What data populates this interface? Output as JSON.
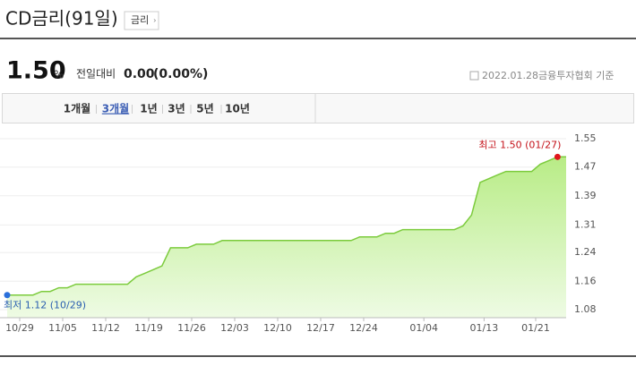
{
  "header": {
    "title": "CD금리(91일)",
    "button": "금리"
  },
  "summary": {
    "value": "1.50",
    "unit": "%",
    "change_label": "전일대비",
    "change": "0.00",
    "change_pct": "(0.00%)",
    "date": "2022.01.28",
    "source": "금융투자협회 기준"
  },
  "tabs": [
    "1개월",
    "3개월",
    "1년",
    "3년",
    "5년",
    "10년"
  ],
  "active_tab": 1,
  "chart_data": {
    "type": "area",
    "categories": [
      "10/29",
      null,
      null,
      null,
      null,
      "11/05",
      null,
      null,
      null,
      null,
      "11/12",
      null,
      null,
      null,
      null,
      "11/19",
      null,
      null,
      null,
      null,
      "11/26",
      null,
      null,
      null,
      null,
      "12/03",
      null,
      null,
      null,
      null,
      "12/10",
      null,
      null,
      null,
      null,
      "12/17",
      null,
      null,
      null,
      null,
      "12/24",
      null,
      null,
      null,
      null,
      null,
      null,
      "01/04",
      null,
      null,
      null,
      null,
      null,
      null,
      "01/13",
      null,
      null,
      null,
      null,
      null,
      "01/21",
      null,
      null,
      null,
      null,
      null
    ],
    "values": [
      1.12,
      1.12,
      1.12,
      1.12,
      1.13,
      1.13,
      1.14,
      1.14,
      1.15,
      1.15,
      1.15,
      1.15,
      1.15,
      1.15,
      1.15,
      1.17,
      1.18,
      1.19,
      1.2,
      1.25,
      1.25,
      1.25,
      1.26,
      1.26,
      1.26,
      1.27,
      1.27,
      1.27,
      1.27,
      1.27,
      1.27,
      1.27,
      1.27,
      1.27,
      1.27,
      1.27,
      1.27,
      1.27,
      1.27,
      1.27,
      1.27,
      1.28,
      1.28,
      1.28,
      1.29,
      1.29,
      1.3,
      1.3,
      1.3,
      1.3,
      1.3,
      1.3,
      1.3,
      1.31,
      1.34,
      1.43,
      1.44,
      1.45,
      1.46,
      1.46,
      1.46,
      1.46,
      1.48,
      1.49,
      1.5,
      1.5
    ],
    "color": "#7ccb3d",
    "ylim": [
      1.08,
      1.55
    ],
    "yticks": [
      1.08,
      {
        "value": 1.158,
        "label": "1.16"
      },
      {
        "value": 1.237,
        "label": "1.24"
      },
      {
        "value": 1.313,
        "label": "1.31"
      },
      {
        "value": 1.393,
        "label": "1.39"
      },
      {
        "value": 1.472,
        "label": "1.47"
      },
      1.55
    ],
    "grid": true,
    "max_label": "최고 1.50 (01/27)",
    "max_index": 64,
    "min_label": "최저 1.12 (10/29)",
    "min_index": 0
  }
}
